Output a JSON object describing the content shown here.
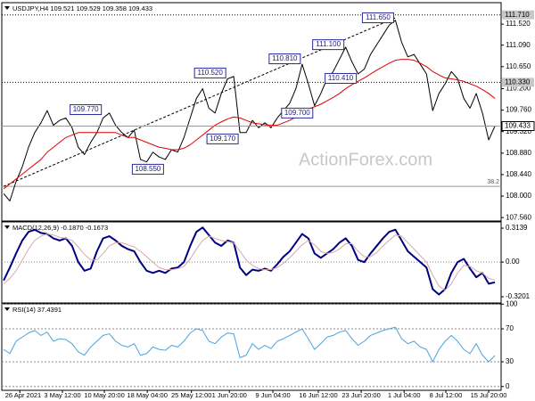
{
  "chart_data": [
    {
      "type": "line",
      "title": "USDJPY,H4 109.521 109.529 109.358 109.433",
      "watermark": "ActionForex.com",
      "xlim": [
        -0.3,
        80
      ],
      "ylim": [
        107.49,
        111.96
      ],
      "yticks": [
        {
          "value": 107.56,
          "label": "107.560"
        },
        {
          "value": 108.0,
          "label": "108.000"
        },
        {
          "value": 108.44,
          "label": "108.440"
        },
        {
          "value": 108.88,
          "label": "108.880"
        },
        {
          "value": 109.32,
          "label": "109.320"
        },
        {
          "value": 109.76,
          "label": "109.760"
        },
        {
          "value": 110.2,
          "label": "110.200"
        },
        {
          "value": 110.65,
          "label": "110.650"
        },
        {
          "value": 111.09,
          "label": "111.090"
        },
        {
          "value": 111.52,
          "label": "111.520"
        }
      ],
      "series": [
        {
          "color": "#000000",
          "values": [
            108.05,
            107.9,
            108.3,
            108.6,
            109.0,
            109.3,
            109.5,
            109.75,
            109.45,
            109.55,
            109.6,
            109.4,
            109.0,
            108.85,
            109.1,
            109.3,
            109.6,
            109.7,
            109.45,
            109.3,
            109.2,
            109.35,
            108.75,
            108.7,
            108.9,
            108.8,
            108.75,
            108.95,
            108.9,
            109.2,
            109.6,
            110.0,
            110.2,
            109.8,
            109.7,
            110.1,
            110.4,
            110.45,
            109.3,
            109.3,
            109.55,
            109.4,
            109.5,
            109.4,
            109.6,
            109.75,
            109.9,
            110.2,
            110.7,
            110.3,
            109.85,
            110.1,
            110.4,
            110.55,
            110.8,
            111.05,
            110.75,
            110.5,
            110.6,
            110.9,
            111.1,
            111.3,
            111.5,
            111.6,
            111.15,
            110.85,
            110.9,
            110.7,
            110.5,
            109.75,
            110.1,
            110.3,
            110.55,
            110.4,
            110.0,
            109.8,
            110.1,
            109.7,
            109.15,
            109.433
          ]
        },
        {
          "color": "#e00000",
          "values": [
            108.15,
            108.25,
            108.35,
            108.45,
            108.55,
            108.65,
            108.75,
            108.9,
            109.0,
            109.1,
            109.2,
            109.25,
            109.3,
            109.3,
            109.3,
            109.3,
            109.3,
            109.3,
            109.3,
            109.25,
            109.2,
            109.2,
            109.15,
            109.1,
            109.05,
            109.0,
            108.98,
            108.95,
            108.95,
            108.98,
            109.05,
            109.15,
            109.25,
            109.35,
            109.45,
            109.52,
            109.58,
            109.62,
            109.6,
            109.55,
            109.5,
            109.48,
            109.46,
            109.45,
            109.45,
            109.5,
            109.55,
            109.62,
            109.7,
            109.78,
            109.83,
            109.88,
            109.95,
            110.02,
            110.1,
            110.2,
            110.28,
            110.35,
            110.42,
            110.5,
            110.58,
            110.65,
            110.72,
            110.78,
            110.8,
            110.8,
            110.78,
            110.72,
            110.65,
            110.55,
            110.48,
            110.42,
            110.4,
            110.38,
            110.35,
            110.3,
            110.25,
            110.18,
            110.1,
            110.0
          ]
        }
      ],
      "levels": [
        {
          "value": 111.71,
          "label": "111.710",
          "style": "dotted"
        },
        {
          "value": 110.33,
          "label": "110.330",
          "style": "dotted"
        },
        {
          "value": 109.433,
          "label": "109.433",
          "style": "solid"
        }
      ],
      "fib": {
        "value": 108.2,
        "label": "38.2"
      },
      "trendline": {
        "from": [
          0,
          108.2
        ],
        "to": [
          63,
          111.65
        ]
      },
      "annotations": [
        {
          "x": 16,
          "value": 109.77,
          "label": "109.770"
        },
        {
          "x": 26,
          "value": 108.55,
          "label": "108.550"
        },
        {
          "x": 36,
          "value": 110.52,
          "label": "110.520"
        },
        {
          "x": 38,
          "value": 109.17,
          "label": "109.170"
        },
        {
          "x": 48,
          "value": 110.81,
          "label": "110.810"
        },
        {
          "x": 50,
          "value": 109.7,
          "label": "109.700"
        },
        {
          "x": 55,
          "value": 111.1,
          "label": "111.100"
        },
        {
          "x": 57,
          "value": 110.41,
          "label": "110.410"
        },
        {
          "x": 63,
          "value": 111.65,
          "label": "111.650"
        }
      ]
    },
    {
      "type": "macd",
      "title": "MACD(12,26,9) -0.1870 -0.1673",
      "xlim": [
        -0.3,
        80
      ],
      "ylim": [
        -0.378,
        0.372
      ],
      "yticks": [
        {
          "value": -0.3201,
          "label": "-0.3201"
        },
        {
          "value": 0,
          "label": "0.00"
        },
        {
          "value": 0.3139,
          "label": "0.3139"
        }
      ],
      "zero_line": true,
      "series": [
        {
          "color": "#000080",
          "values": [
            -0.17,
            -0.05,
            0.08,
            0.2,
            0.28,
            0.3,
            0.27,
            0.26,
            0.22,
            0.2,
            0.22,
            0.15,
            0.0,
            -0.08,
            -0.06,
            0.1,
            0.22,
            0.24,
            0.2,
            0.15,
            0.12,
            0.1,
            0.0,
            -0.08,
            -0.1,
            -0.08,
            -0.1,
            -0.06,
            -0.05,
            0.0,
            0.15,
            0.28,
            0.32,
            0.25,
            0.18,
            0.15,
            0.2,
            0.18,
            -0.05,
            -0.12,
            -0.07,
            -0.08,
            -0.06,
            -0.08,
            -0.02,
            0.05,
            0.1,
            0.18,
            0.26,
            0.22,
            0.08,
            0.04,
            0.08,
            0.12,
            0.18,
            0.22,
            0.15,
            0.02,
            0.0,
            0.08,
            0.15,
            0.22,
            0.28,
            0.3,
            0.2,
            0.1,
            0.05,
            0.0,
            -0.05,
            -0.25,
            -0.3,
            -0.25,
            -0.1,
            0.0,
            0.03,
            -0.06,
            -0.14,
            -0.1,
            -0.2,
            -0.187
          ]
        },
        {
          "color": "#d8a8a8",
          "values": [
            -0.2,
            -0.15,
            -0.08,
            0.02,
            0.12,
            0.2,
            0.24,
            0.26,
            0.25,
            0.23,
            0.22,
            0.2,
            0.14,
            0.07,
            0.02,
            0.02,
            0.08,
            0.15,
            0.18,
            0.18,
            0.16,
            0.14,
            0.1,
            0.05,
            0.0,
            -0.05,
            -0.07,
            -0.07,
            -0.06,
            -0.04,
            0.03,
            0.12,
            0.2,
            0.24,
            0.22,
            0.2,
            0.19,
            0.18,
            0.1,
            0.02,
            -0.03,
            -0.06,
            -0.07,
            -0.07,
            -0.05,
            -0.01,
            0.04,
            0.1,
            0.16,
            0.2,
            0.16,
            0.1,
            0.08,
            0.09,
            0.12,
            0.17,
            0.17,
            0.1,
            0.05,
            0.05,
            0.09,
            0.15,
            0.2,
            0.25,
            0.24,
            0.18,
            0.12,
            0.06,
            0.0,
            -0.12,
            -0.22,
            -0.26,
            -0.2,
            -0.1,
            -0.03,
            -0.04,
            -0.08,
            -0.1,
            -0.15,
            -0.1673
          ]
        }
      ]
    },
    {
      "type": "rsi",
      "title": "RSI(14) 37.4391",
      "xlim": [
        -0.3,
        80
      ],
      "ylim": [
        -4.6,
        100.3
      ],
      "yticks": [
        0,
        30,
        70,
        100
      ],
      "grid": true,
      "xticks": [
        {
          "value": 2.6,
          "label": "26 Apr 2021"
        },
        {
          "value": 9.45,
          "label": "3 May 12:00"
        },
        {
          "value": 16.2,
          "label": "10 May 20:00"
        },
        {
          "value": 23.1,
          "label": "18 May 04:00"
        },
        {
          "value": 30.2,
          "label": "25 May 12:00"
        },
        {
          "value": 36.3,
          "label": "1 Jun 20:00"
        },
        {
          "value": 43.3,
          "label": "9 Jun 04:00"
        },
        {
          "value": 50.6,
          "label": "16 Jun 12:00"
        },
        {
          "value": 57.5,
          "label": "23 Jun 20:00"
        },
        {
          "value": 64.4,
          "label": "1 Jul 04:00"
        },
        {
          "value": 71.1,
          "label": "8 Jul 12:00"
        },
        {
          "value": 78.0,
          "label": "15 Jul 20:00"
        }
      ],
      "series": [
        {
          "color": "#4aa3df",
          "values": [
            45,
            40,
            55,
            60,
            65,
            68,
            62,
            66,
            55,
            58,
            57,
            52,
            42,
            38,
            48,
            55,
            62,
            64,
            55,
            50,
            48,
            52,
            38,
            40,
            48,
            45,
            44,
            50,
            48,
            55,
            65,
            70,
            68,
            55,
            52,
            60,
            65,
            64,
            35,
            38,
            52,
            45,
            50,
            46,
            55,
            58,
            62,
            66,
            70,
            58,
            45,
            52,
            60,
            62,
            66,
            68,
            58,
            50,
            55,
            62,
            65,
            68,
            70,
            72,
            58,
            52,
            55,
            48,
            45,
            30,
            45,
            55,
            62,
            55,
            45,
            40,
            52,
            38,
            30,
            37.4391
          ]
        }
      ]
    }
  ]
}
